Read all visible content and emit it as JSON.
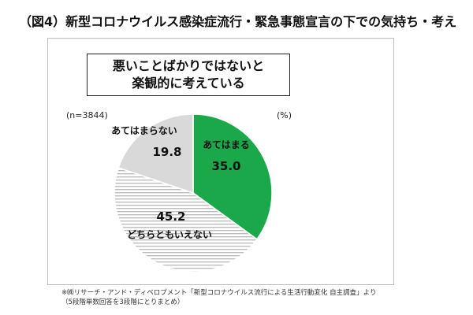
{
  "title": "（図4）新型コロナウイルス感染症流行・緊急事態宣言の下での気持ち・考え",
  "question_lines": [
    "悪いことばかりではないと",
    "楽観的に考えている"
  ],
  "n_label": "(n=3844)",
  "unit_label": "(%)",
  "footnote_lines": [
    "※㈱リサーチ・アンド・ディベロプメント「新型コロナウイルス流行による生活行動変化 自主調査」より",
    "（5段階単数回答を3段階にとりまとめ）"
  ],
  "chart_data": {
    "type": "pie",
    "unit": "%",
    "n": 3844,
    "slices": [
      {
        "label": "あてはまる",
        "value": 35.0,
        "value_text": "35.0",
        "color": "#1aa84a",
        "fill": "solid"
      },
      {
        "label": "どちらともいえない",
        "value": 45.2,
        "value_text": "45.2",
        "color": "#c8c8c8",
        "fill": "striped"
      },
      {
        "label": "あてはまらない",
        "value": 19.8,
        "value_text": "19.8",
        "color": "#d9d9d9",
        "fill": "solid"
      }
    ]
  }
}
